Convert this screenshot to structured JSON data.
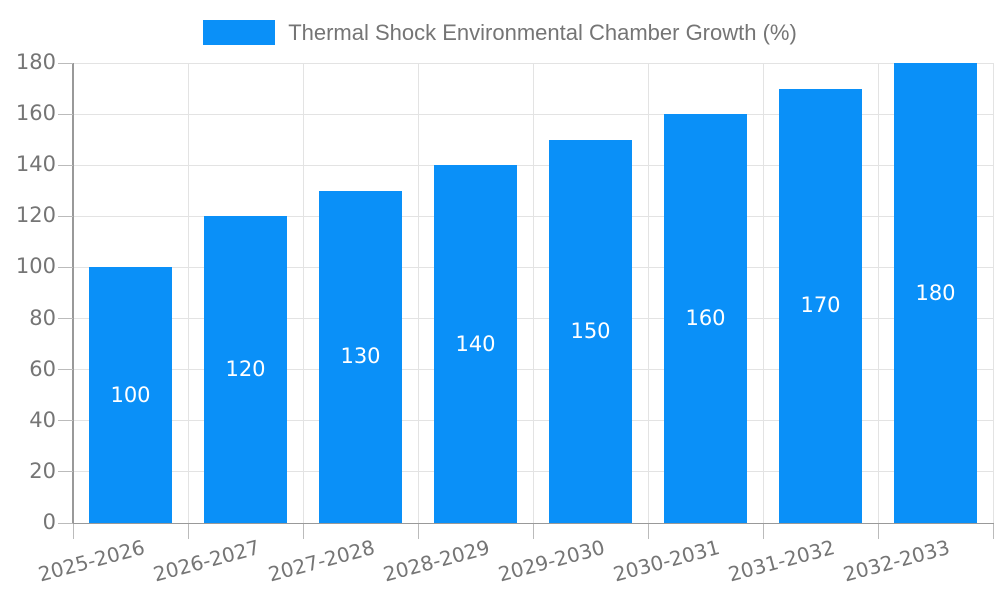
{
  "legend": {
    "label": "Thermal Shock Environmental Chamber Growth (%)"
  },
  "colors": {
    "bar": "#0a90f8",
    "grid": "#e3e3e3",
    "axis": "#999999",
    "tick": "#bbbbbb",
    "tick_label": "#757575",
    "value_label": "#ffffff",
    "legend_text": "#757575",
    "background": "#ffffff"
  },
  "chart_data": {
    "type": "bar",
    "title": "Thermal Shock Environmental Chamber Growth (%)",
    "categories": [
      "2025-2026",
      "2026-2027",
      "2027-2028",
      "2028-2029",
      "2029-2030",
      "2030-2031",
      "2031-2032",
      "2032-2033"
    ],
    "values": [
      100,
      120,
      130,
      140,
      150,
      160,
      170,
      180
    ],
    "value_labels": [
      "100",
      "120",
      "130",
      "140",
      "150",
      "160",
      "170",
      "180"
    ],
    "series": [
      {
        "name": "Thermal Shock Environmental Chamber Growth (%)",
        "values": [
          100,
          120,
          130,
          140,
          150,
          160,
          170,
          180
        ]
      }
    ],
    "xlabel": "",
    "ylabel": "",
    "ylim": [
      0,
      180
    ],
    "yticks": [
      0,
      20,
      40,
      60,
      80,
      100,
      120,
      140,
      160,
      180
    ],
    "grid": true,
    "legend_position": "top-center",
    "x_tick_rotation_deg": -15,
    "bar_color": "#0a90f8",
    "value_label_position": "inside-center",
    "value_label_color": "#ffffff"
  }
}
